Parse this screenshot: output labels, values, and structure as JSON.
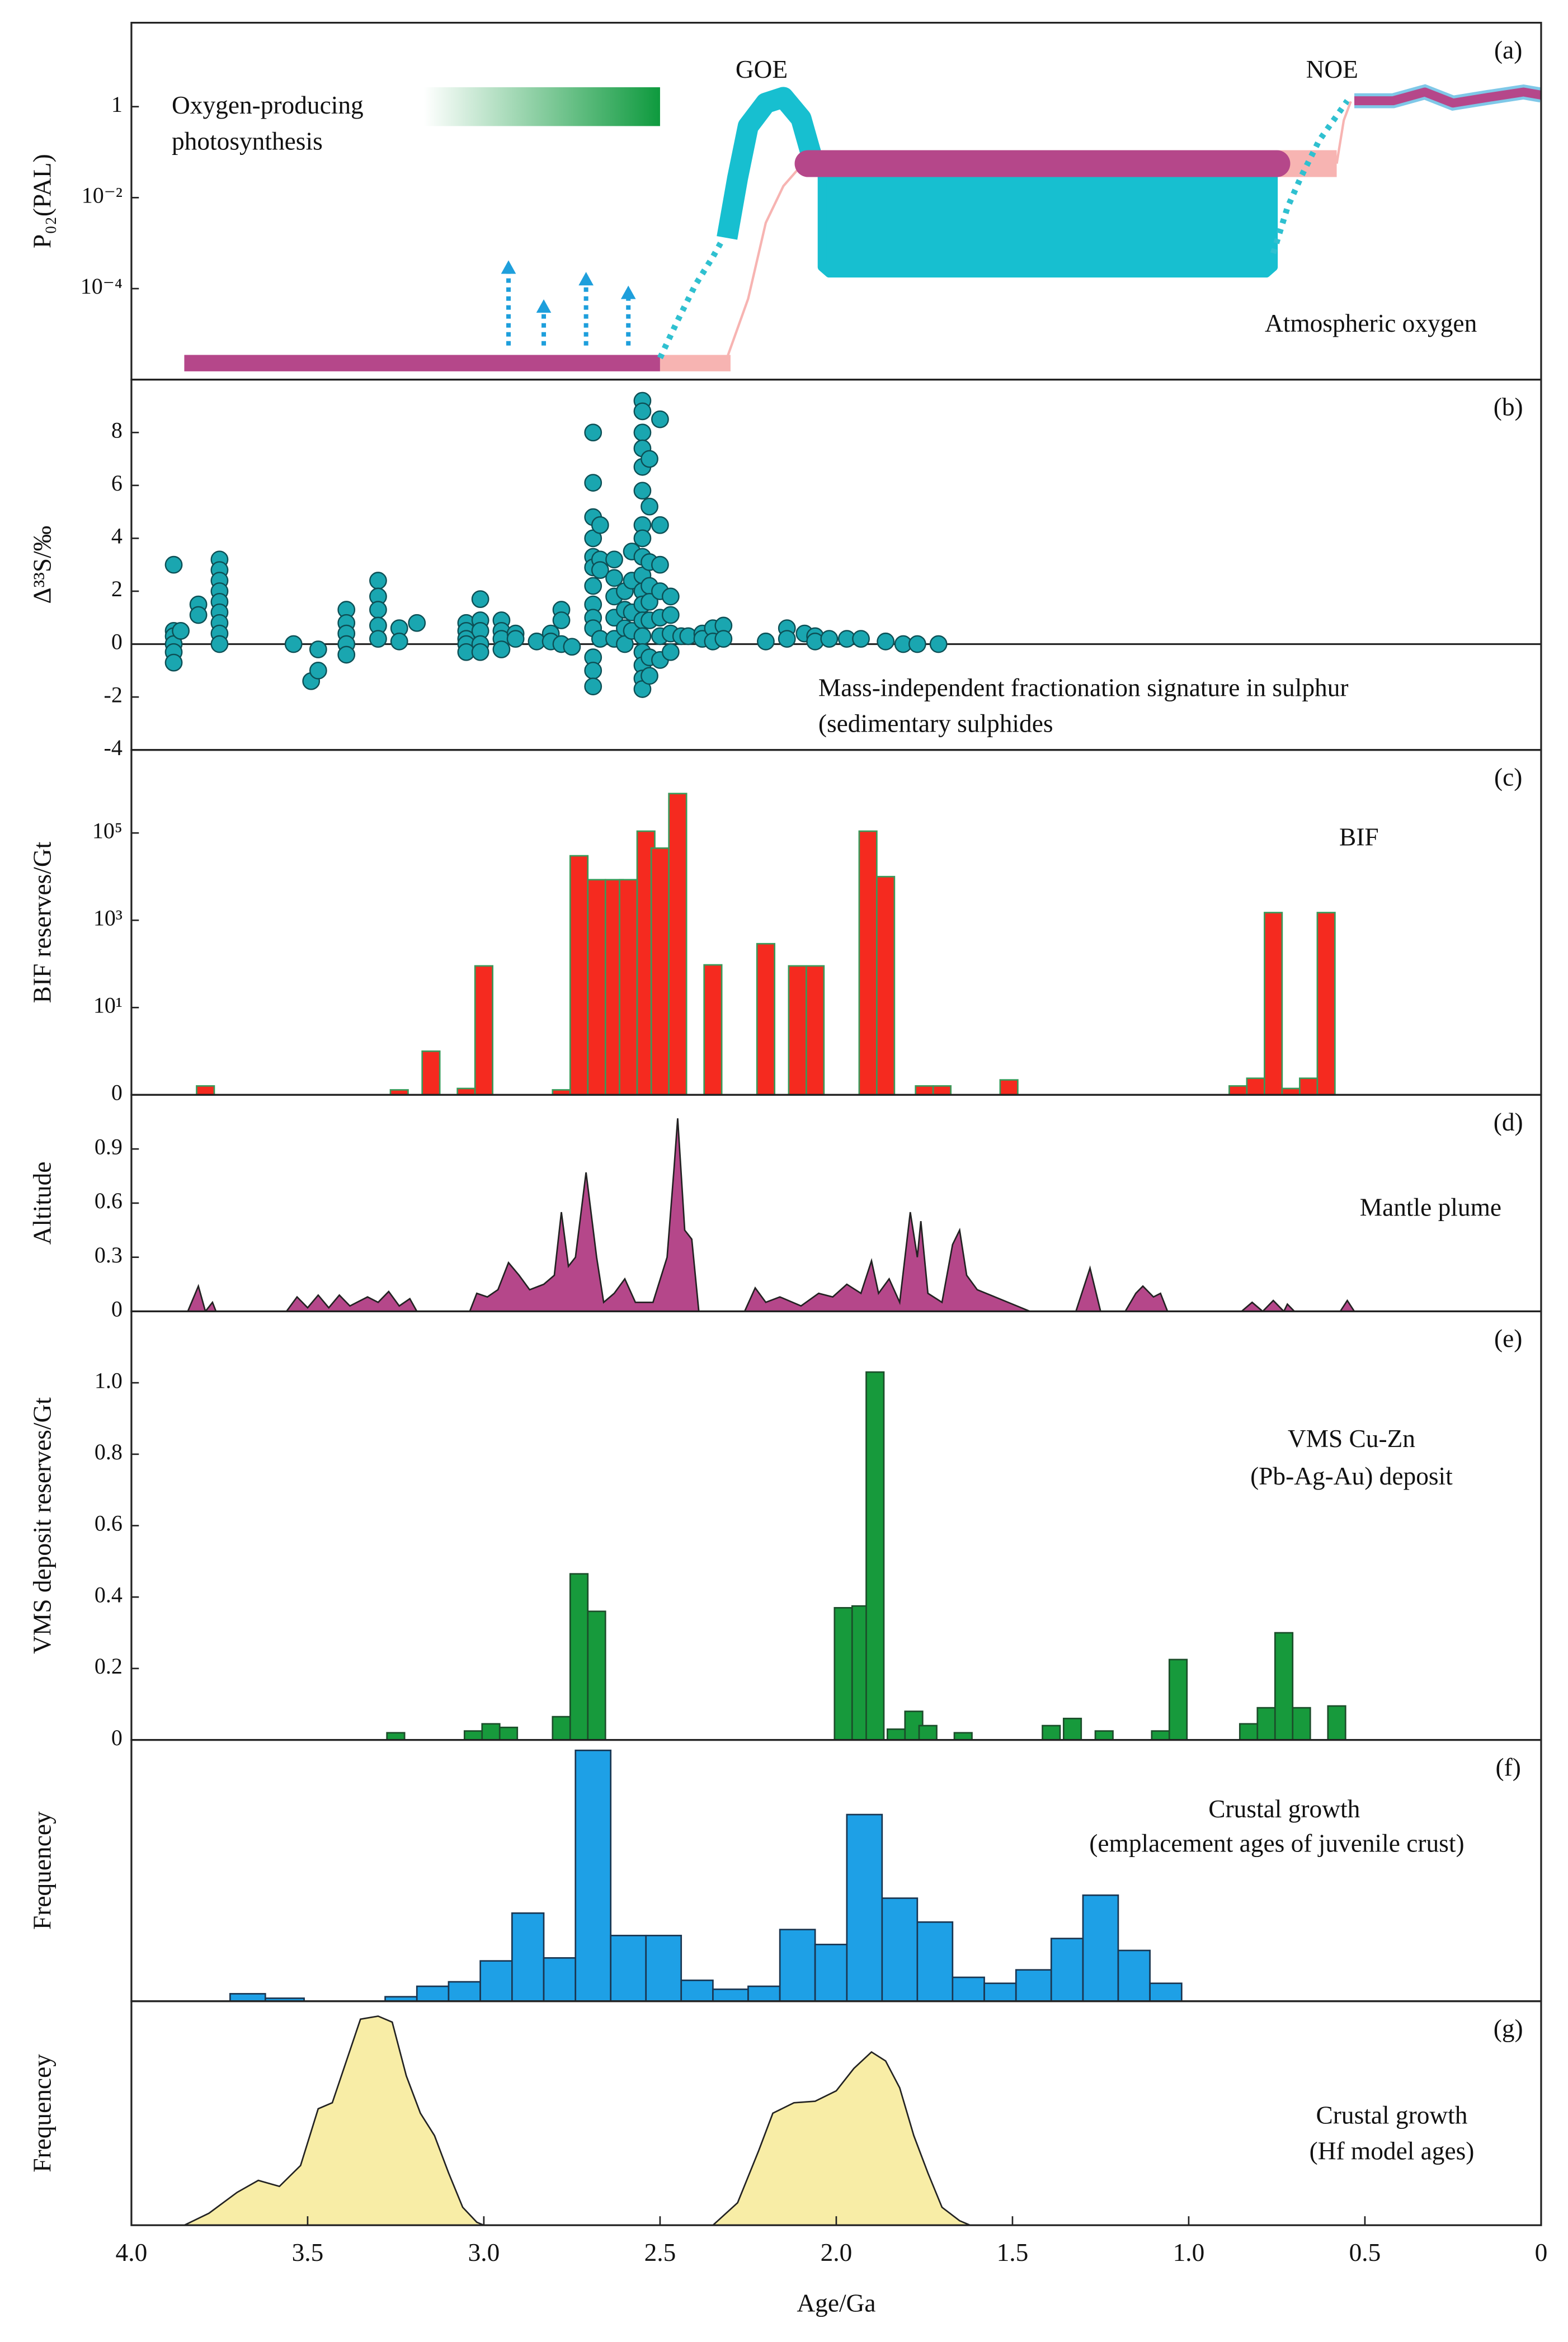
{
  "chart_data": [
    {
      "type": "line",
      "panel": "(a)",
      "ylabel": "P₀₂(PAL)",
      "log": true,
      "xlim": [
        4,
        0
      ],
      "ylim": [
        1e-06,
        70
      ],
      "yticks": [
        {
          "value": 0.0001,
          "label": "10⁻⁴"
        },
        {
          "value": 0.01,
          "label": "10⁻²"
        },
        1
      ],
      "annotations": [
        "GOE",
        "NOE",
        "Oxygen-producing",
        "photosynthesis",
        "Atmospheric oxygen"
      ],
      "gradient_bar": {
        "x": [
          3.17,
          2.5
        ],
        "value": 1,
        "color": "#0e9a3e"
      },
      "arrows": {
        "x": [
          2.93,
          2.83,
          2.71,
          2.59
        ],
        "values": [
          0.00036,
          5e-05,
          0.0002,
          0.0001
        ],
        "base": 5.6e-06,
        "color": "#1e9fdc"
      },
      "series": [
        {
          "color": "#b5478a",
          "style": "thick",
          "x": [
            3.85,
            2.5
          ],
          "values": [
            2.3e-06,
            2.3e-06
          ]
        },
        {
          "color": "#f7b4b2",
          "style": "thick",
          "x": [
            2.5,
            2.3
          ],
          "values": [
            2.3e-06,
            2.3e-06
          ]
        },
        {
          "color": "#f7b4b2",
          "style": "thin",
          "x": [
            2.31,
            2.25,
            2.2,
            2.15,
            2.1
          ],
          "values": [
            3e-06,
            6e-05,
            0.0028,
            0.018,
            0.05
          ]
        },
        {
          "color": "#2fc0d0",
          "style": "dotted",
          "x": [
            2.5,
            2.45,
            2.4,
            2.35,
            2.32
          ],
          "values": [
            3e-06,
            2e-05,
            0.00012,
            0.0005,
            0.0013
          ]
        },
        {
          "color": "#17bfd0",
          "style": "arc",
          "x": [
            2.31,
            2.28,
            2.25,
            2.2,
            2.15,
            2.1,
            2.07
          ],
          "values": [
            0.0013,
            0.027,
            0.37,
            1.2,
            1.6,
            0.55,
            0.083
          ]
        },
        {
          "color": "#17bfd0",
          "style": "area",
          "x": [
            2.04,
            0.76,
            0.76,
            0.78,
            2.02,
            2.04
          ],
          "values": [
            0.056,
            0.056,
            0.0003,
            0.00022,
            0.00022,
            0.0003
          ]
        },
        {
          "color": "#f7b4b2",
          "style": "band",
          "x": [
            0.75,
            0.58
          ],
          "values": [
            0.056,
            0.056
          ]
        },
        {
          "color": "#b5478a",
          "style": "rounded",
          "x": [
            2.08,
            0.75
          ],
          "values": [
            0.056,
            0.056
          ]
        },
        {
          "color": "#2fc0d0",
          "style": "dotted",
          "x": [
            0.76,
            0.72,
            0.68,
            0.63,
            0.58,
            0.55
          ],
          "values": [
            0.0006,
            0.006,
            0.03,
            0.18,
            0.63,
            1.35
          ]
        },
        {
          "color": "#f7b4b2",
          "style": "thin",
          "x": [
            0.58,
            0.56,
            0.54
          ],
          "values": [
            0.056,
            0.5,
            1.3
          ]
        },
        {
          "color": "#b5478a",
          "style": "wave",
          "x": [
            0.53,
            0.42,
            0.33,
            0.25,
            0.15,
            0.05,
            0
          ],
          "values": [
            1.35,
            1.35,
            2.1,
            1.2,
            1.6,
            2.1,
            1.8
          ]
        }
      ]
    },
    {
      "type": "scatter",
      "panel": "(b)",
      "ylabel": "Δ³³S/‰",
      "color": "#1aa6b0",
      "zero_line": true,
      "xlim": [
        4,
        0
      ],
      "ylim": [
        -4,
        10
      ],
      "yticks": [
        -4,
        -2,
        0,
        2,
        4,
        6,
        8
      ],
      "annotations": [
        "Mass-independent fractionation signature in sulphur",
        "(sedimentary sulphides"
      ],
      "x": [
        3.88,
        3.88,
        3.88,
        3.88,
        3.88,
        3.88,
        3.86,
        3.81,
        3.81,
        3.75,
        3.75,
        3.75,
        3.75,
        3.75,
        3.75,
        3.75,
        3.75,
        3.75,
        3.54,
        3.49,
        3.47,
        3.47,
        3.39,
        3.39,
        3.39,
        3.39,
        3.39,
        3.3,
        3.3,
        3.3,
        3.3,
        3.3,
        3.24,
        3.24,
        3.19,
        3.05,
        3.05,
        3.05,
        3.05,
        3.05,
        3.01,
        3.01,
        3.01,
        3.01,
        3.01,
        2.95,
        2.95,
        2.95,
        2.95,
        2.91,
        2.91,
        2.85,
        2.81,
        2.81,
        2.78,
        2.78,
        2.78,
        2.75,
        2.69,
        2.69,
        2.69,
        2.69,
        2.69,
        2.69,
        2.69,
        2.69,
        2.69,
        2.69,
        2.69,
        2.69,
        2.69,
        2.67,
        2.67,
        2.67,
        2.67,
        2.63,
        2.63,
        2.63,
        2.63,
        2.63,
        2.6,
        2.6,
        2.6,
        2.6,
        2.58,
        2.58,
        2.58,
        2.58,
        2.55,
        2.55,
        2.55,
        2.55,
        2.55,
        2.55,
        2.55,
        2.55,
        2.55,
        2.55,
        2.55,
        2.55,
        2.55,
        2.55,
        2.55,
        2.55,
        2.55,
        2.55,
        2.53,
        2.53,
        2.53,
        2.53,
        2.53,
        2.53,
        2.53,
        2.53,
        2.5,
        2.5,
        2.5,
        2.5,
        2.5,
        2.5,
        2.5,
        2.47,
        2.47,
        2.47,
        2.47,
        2.44,
        2.42,
        2.38,
        2.38,
        2.35,
        2.35,
        2.32,
        2.32,
        2.2,
        2.14,
        2.14,
        2.09,
        2.06,
        2.06,
        2.02,
        1.97,
        1.93,
        1.86,
        1.81,
        1.77,
        1.71
      ],
      "values": [
        3.0,
        0.5,
        0.3,
        0,
        -0.3,
        -0.7,
        0.5,
        1.5,
        1.1,
        3.2,
        2.8,
        2.4,
        2.0,
        1.6,
        1.2,
        0.8,
        0.4,
        0,
        0,
        -1.4,
        -1.0,
        -0.2,
        1.3,
        0.8,
        0.4,
        0,
        -0.4,
        2.4,
        1.8,
        1.3,
        0.7,
        0.2,
        0.6,
        0.1,
        0.8,
        0.8,
        0.5,
        0.2,
        0,
        -0.3,
        1.7,
        0.9,
        0.5,
        0,
        -0.3,
        0.9,
        0.5,
        0.2,
        -0.2,
        0.4,
        0.2,
        0.1,
        0.4,
        0.1,
        1.3,
        0.9,
        0,
        -0.1,
        8.0,
        6.1,
        4.8,
        4.0,
        3.3,
        2.9,
        2.2,
        1.5,
        1.0,
        0.6,
        -0.5,
        -1.0,
        -1.6,
        4.5,
        3.2,
        2.8,
        0.2,
        3.2,
        2.5,
        1.8,
        1.0,
        0.2,
        2.0,
        1.3,
        0.6,
        0,
        3.5,
        2.4,
        1.2,
        0.5,
        9.2,
        8.8,
        8.0,
        7.4,
        6.7,
        5.8,
        4.5,
        4.0,
        3.3,
        2.6,
        2.0,
        1.5,
        0.9,
        0.3,
        -0.3,
        -0.8,
        -1.3,
        -1.7,
        7.0,
        5.2,
        3.1,
        2.2,
        1.6,
        0.9,
        -0.5,
        -1.2,
        8.5,
        4.5,
        3.0,
        2.0,
        1.0,
        0.3,
        -0.6,
        1.8,
        1.1,
        0.4,
        -0.3,
        0.3,
        0.3,
        0.4,
        0.2,
        0.6,
        0.1,
        0.7,
        0.2,
        0.1,
        0.6,
        0.2,
        0.4,
        0.3,
        0.1,
        0.2,
        0.2,
        0.2,
        0.1,
        0,
        0,
        0
      ]
    },
    {
      "type": "bar",
      "panel": "(c)",
      "ylabel": "BIF reserves/Gt",
      "log": true,
      "color": "#f52a1f",
      "edge": "#3a9a5a",
      "bar_width": 0.05,
      "xlim": [
        4,
        0
      ],
      "ylim": [
        0.1,
        8000000
      ],
      "yticks": [
        0,
        {
          "value": 10,
          "label": "10¹"
        },
        {
          "value": 1000,
          "label": "10³"
        },
        {
          "value": 100000,
          "label": "10⁵"
        }
      ],
      "annotations": [
        "BIF"
      ],
      "x": [
        3.79,
        3.24,
        3.15,
        3.05,
        3.0,
        2.78,
        2.73,
        2.68,
        2.63,
        2.59,
        2.54,
        2.5,
        2.45,
        2.35,
        2.2,
        2.11,
        2.06,
        1.91,
        1.86,
        1.75,
        1.7,
        1.51,
        0.86,
        0.81,
        0.76,
        0.71,
        0.66,
        0.61
      ],
      "values": [
        0.16,
        0.13,
        1,
        0.14,
        90,
        0.13,
        30000,
        8500,
        8500,
        8500,
        110000,
        45000,
        800000,
        95,
        290,
        90,
        90,
        110000,
        10000,
        0.16,
        0.16,
        0.22,
        0.16,
        0.24,
        1500,
        0.14,
        0.24,
        1500
      ]
    },
    {
      "type": "area",
      "panel": "(d)",
      "ylabel": "Altitude",
      "color": "#b5478a",
      "xlim": [
        4,
        0
      ],
      "ylim": [
        0,
        1.2
      ],
      "yticks": [
        0,
        0.3,
        0.6,
        0.9
      ],
      "annotations": [
        "Mantle plume"
      ],
      "x": [
        3.84,
        3.81,
        3.79,
        3.77,
        3.76,
        3.56,
        3.53,
        3.5,
        3.47,
        3.44,
        3.41,
        3.38,
        3.33,
        3.3,
        3.27,
        3.24,
        3.21,
        3.19,
        3.04,
        3.02,
        2.99,
        2.96,
        2.93,
        2.9,
        2.87,
        2.83,
        2.8,
        2.78,
        2.76,
        2.74,
        2.71,
        2.68,
        2.66,
        2.63,
        2.6,
        2.57,
        2.52,
        2.48,
        2.46,
        2.45,
        2.43,
        2.41,
        2.39,
        2.26,
        2.23,
        2.2,
        2.16,
        2.1,
        2.05,
        2.01,
        1.97,
        1.93,
        1.9,
        1.88,
        1.85,
        1.82,
        1.79,
        1.77,
        1.76,
        1.74,
        1.7,
        1.67,
        1.65,
        1.63,
        1.6,
        1.45,
        1.32,
        1.28,
        1.25,
        1.18,
        1.15,
        1.13,
        1.1,
        1.08,
        1.06,
        0.85,
        0.82,
        0.79,
        0.76,
        0.73,
        0.72,
        0.7,
        0.57,
        0.55,
        0.53
      ],
      "values": [
        0,
        0.14,
        0,
        0.05,
        0,
        0,
        0.08,
        0.02,
        0.09,
        0.02,
        0.09,
        0.03,
        0.08,
        0.05,
        0.11,
        0.03,
        0.07,
        0,
        0,
        0.1,
        0.08,
        0.12,
        0.27,
        0.2,
        0.12,
        0.15,
        0.2,
        0.55,
        0.25,
        0.3,
        0.77,
        0.3,
        0.05,
        0.1,
        0.18,
        0.05,
        0.05,
        0.3,
        0.8,
        1.07,
        0.45,
        0.4,
        0,
        0,
        0.13,
        0.05,
        0.08,
        0.03,
        0.1,
        0.08,
        0.15,
        0.1,
        0.28,
        0.1,
        0.18,
        0.05,
        0.55,
        0.3,
        0.5,
        0.1,
        0.05,
        0.37,
        0.45,
        0.2,
        0.12,
        0,
        0,
        0.24,
        0,
        0,
        0.1,
        0.14,
        0.08,
        0.1,
        0,
        0,
        0.05,
        0,
        0.06,
        0,
        0.04,
        0,
        0,
        0.06,
        0
      ]
    },
    {
      "type": "bar",
      "panel": "(e)",
      "ylabel": "VMS deposit reserves/Gt",
      "color": "#179a3c",
      "edge": "#1b4d2a",
      "bar_width": 0.05,
      "xlim": [
        4,
        0
      ],
      "ylim": [
        0,
        1.2
      ],
      "yticks": [
        0,
        0.2,
        0.4,
        0.6,
        0.8,
        {
          "value": 1,
          "label": "1.0"
        }
      ],
      "annotations": [
        "VMS Cu-Zn",
        "(Pb-Ag-Au) deposit"
      ],
      "x": [
        3.25,
        3.03,
        2.98,
        2.93,
        2.78,
        2.73,
        2.68,
        1.98,
        1.93,
        1.89,
        1.83,
        1.78,
        1.74,
        1.64,
        1.39,
        1.33,
        1.24,
        1.08,
        1.03,
        0.83,
        0.78,
        0.73,
        0.68,
        0.58
      ],
      "values": [
        0.02,
        0.025,
        0.045,
        0.035,
        0.065,
        0.465,
        0.36,
        0.37,
        0.375,
        1.03,
        0.03,
        0.08,
        0.04,
        0.02,
        0.04,
        0.06,
        0.025,
        0.025,
        0.225,
        0.045,
        0.09,
        0.3,
        0.09,
        0.095
      ]
    },
    {
      "type": "histogram",
      "panel": "(f)",
      "ylabel": "Frequencey",
      "color": "#1ea0e6",
      "edge": "#1a3550",
      "xlim": [
        4,
        0
      ],
      "ylim": [
        0,
        175
      ],
      "annotations": [
        "Crustal growth",
        "(emplacement ages of juvenile crust)"
      ],
      "bins": [
        3.72,
        3.62,
        3.51,
        3.28,
        3.19,
        3.1,
        3.01,
        2.92,
        2.83,
        2.74,
        2.64,
        2.54,
        2.44,
        2.35,
        2.25,
        2.16,
        2.06,
        1.97,
        1.87,
        1.77,
        1.67,
        1.58,
        1.49,
        1.39,
        1.3,
        1.2,
        1.11,
        1.02
      ],
      "counts": [
        5,
        2,
        0,
        3,
        10,
        13,
        27,
        59,
        29,
        168,
        44,
        44,
        14,
        8,
        10,
        48,
        38,
        125,
        69,
        53,
        16,
        12,
        21,
        42,
        71,
        34,
        12
      ]
    },
    {
      "type": "area",
      "panel": "(g)",
      "ylabel": "Frequencey",
      "color": "#f8eda6",
      "xlim": [
        4,
        0
      ],
      "ylim": [
        0,
        150
      ],
      "xlabel": "Age/Ga",
      "xticks": [
        {
          "value": 4,
          "label": "4.0"
        },
        3.5,
        {
          "value": 3,
          "label": "3.0"
        },
        2.5,
        {
          "value": 2,
          "label": "2.0"
        },
        1.5,
        {
          "value": 1,
          "label": "1.0"
        },
        0.5,
        0
      ],
      "annotations": [
        "Crustal growth",
        "(Hf model ages)"
      ],
      "x": [
        3.85,
        3.78,
        3.7,
        3.64,
        3.58,
        3.52,
        3.47,
        3.43,
        3.39,
        3.35,
        3.3,
        3.26,
        3.22,
        3.18,
        3.14,
        3.1,
        3.06,
        3.02,
        3.0,
        2.35,
        2.28,
        2.22,
        2.18,
        2.12,
        2.06,
        2.0,
        1.95,
        1.9,
        1.86,
        1.82,
        1.78,
        1.74,
        1.7,
        1.65,
        1.62
      ],
      "values": [
        0,
        8,
        22,
        30,
        26,
        40,
        78,
        82,
        110,
        138,
        140,
        136,
        100,
        75,
        60,
        35,
        12,
        2,
        0,
        0,
        15,
        50,
        75,
        82,
        83,
        90,
        105,
        116,
        110,
        92,
        60,
        35,
        12,
        3,
        0
      ]
    }
  ]
}
